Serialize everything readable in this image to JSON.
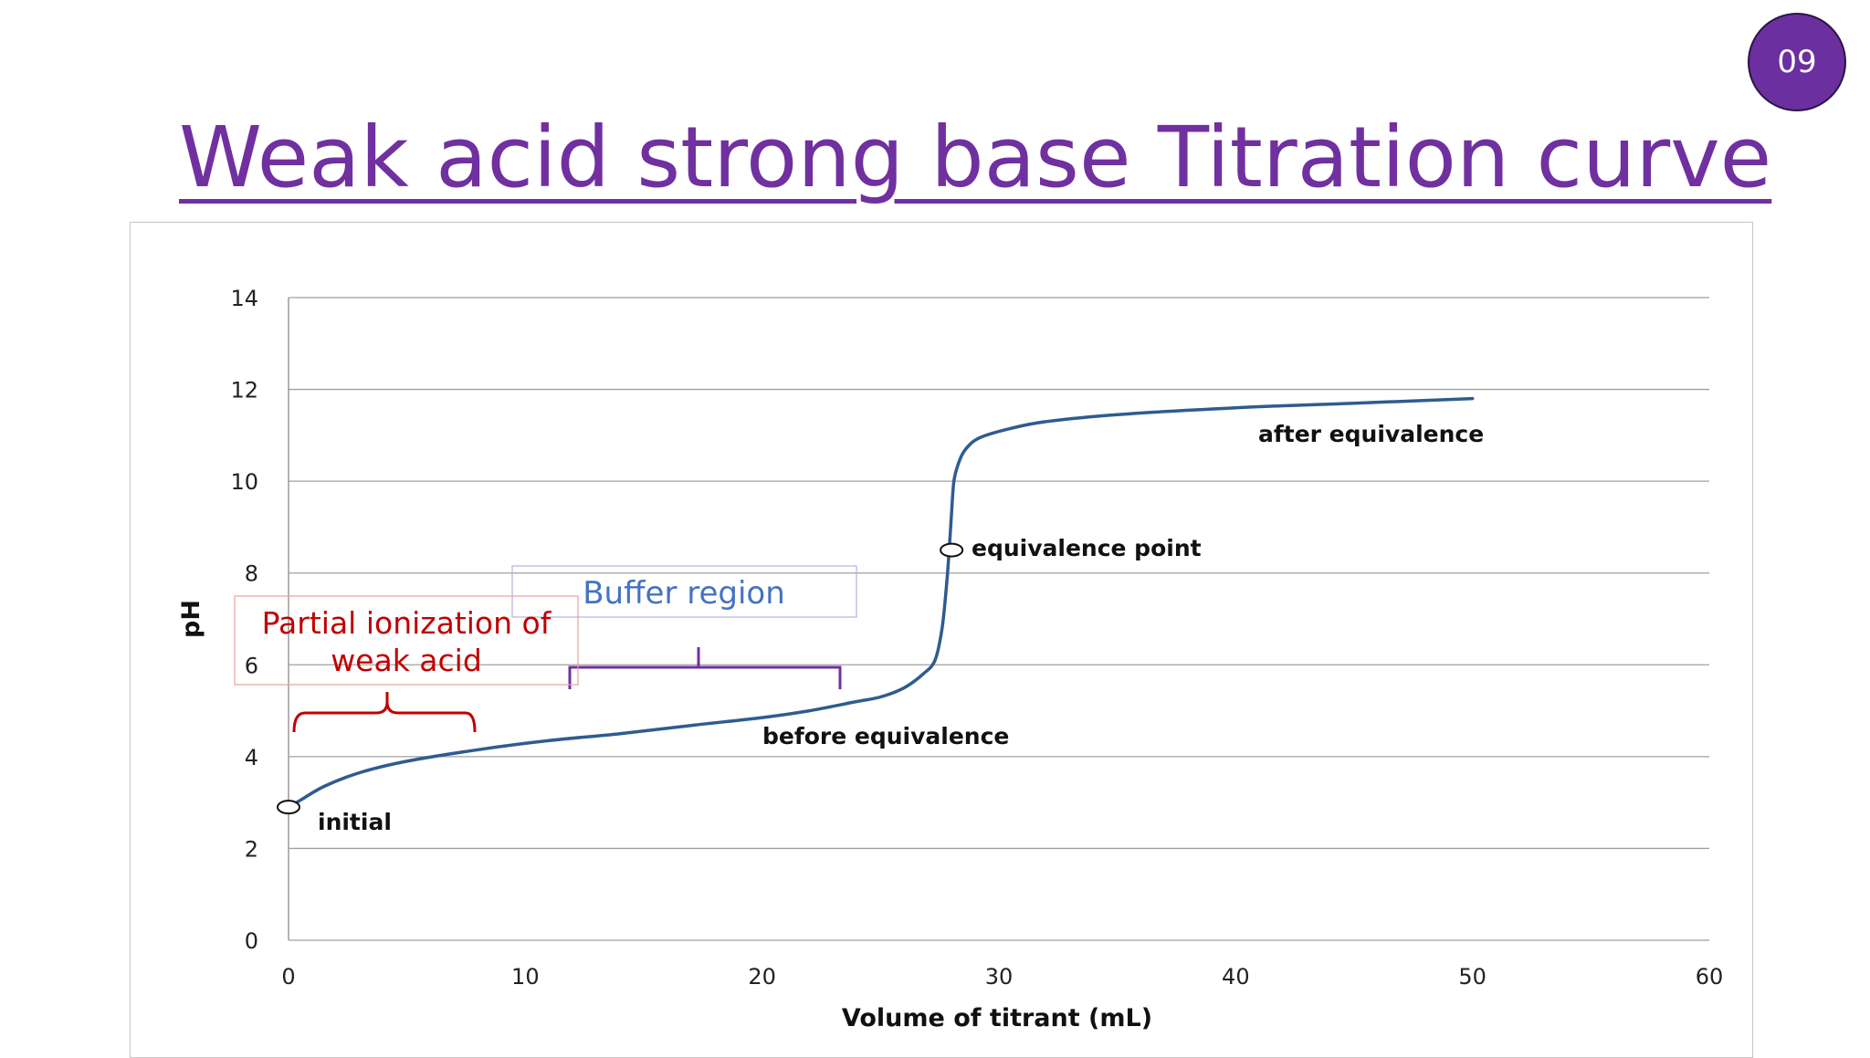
{
  "slide": {
    "number": "09",
    "title": "Weak acid strong base Titration curve"
  },
  "colors": {
    "accent": "#7030a0",
    "curve": "#2e5c8f",
    "annotation_red": "#c00000",
    "annotation_blue": "#4472c4"
  },
  "chart_data": {
    "type": "line",
    "title": "",
    "xlabel": "Volume of titrant (mL)",
    "ylabel": "pH",
    "xlim": [
      0,
      60
    ],
    "ylim": [
      0,
      14
    ],
    "xticks": [
      0,
      10,
      20,
      30,
      40,
      50,
      60
    ],
    "yticks": [
      0,
      2,
      4,
      6,
      8,
      10,
      12,
      14
    ],
    "grid": "horizontal",
    "series": [
      {
        "x": [
          0,
          0.5,
          1.5,
          3,
          5,
          8,
          11,
          14,
          17,
          20,
          22,
          24,
          25,
          26,
          26.8,
          27.3,
          27.6,
          27.8,
          27.9,
          28.0,
          28.1,
          28.3,
          28.6,
          29.2,
          30.5,
          32,
          35,
          40,
          45,
          50
        ],
        "y": [
          2.9,
          3.05,
          3.35,
          3.65,
          3.9,
          4.15,
          4.35,
          4.5,
          4.68,
          4.85,
          5.0,
          5.2,
          5.3,
          5.5,
          5.8,
          6.1,
          6.8,
          7.8,
          8.5,
          9.3,
          10.0,
          10.4,
          10.7,
          10.95,
          11.15,
          11.3,
          11.45,
          11.6,
          11.7,
          11.8
        ]
      }
    ],
    "markers": [
      {
        "x": 0,
        "y": 2.9
      },
      {
        "x": 28,
        "y": 8.5
      }
    ],
    "annotations": {
      "initial": "initial",
      "before": "before equivalence",
      "equivalence": "equivalence point",
      "after": "after equivalence",
      "buffer": "Buffer region",
      "partial": [
        "Partial ionization of",
        "weak acid"
      ]
    }
  }
}
